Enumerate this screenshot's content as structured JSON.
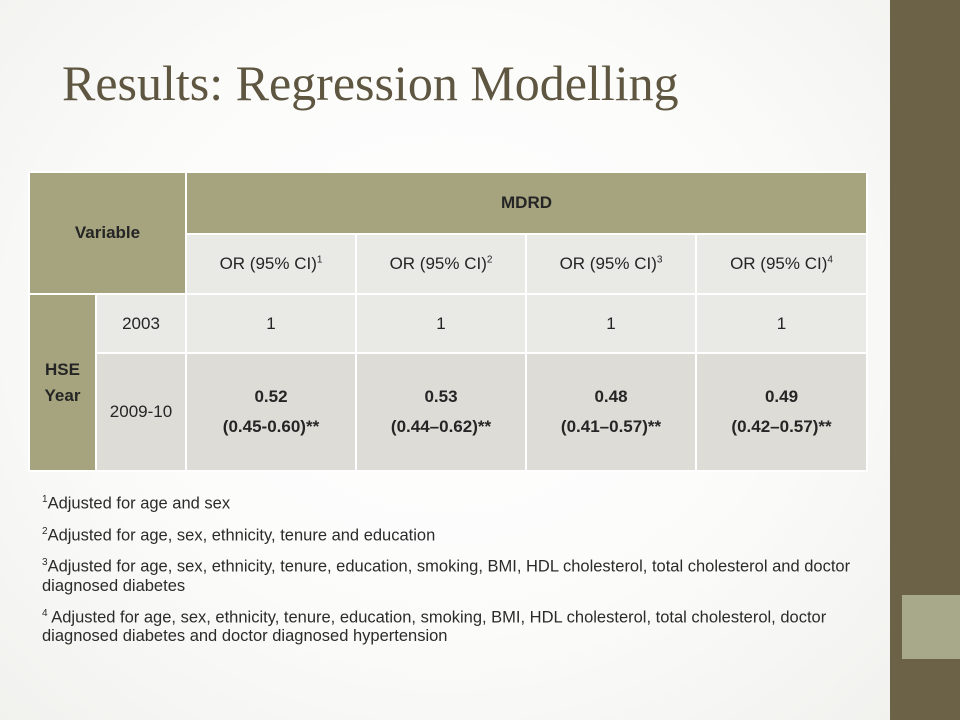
{
  "title": "Results: Regression Modelling",
  "table": {
    "variable_header": "Variable",
    "group_header": "MDRD",
    "columns": [
      {
        "label": "OR (95% CI)",
        "sup": "1"
      },
      {
        "label": "OR (95% CI)",
        "sup": "2"
      },
      {
        "label": "OR (95% CI)",
        "sup": "3"
      },
      {
        "label": "OR (95% CI)",
        "sup": "4"
      }
    ],
    "row_group_label": "HSE Year",
    "rows": [
      {
        "year": "2003",
        "values": [
          "1",
          "1",
          "1",
          "1"
        ]
      },
      {
        "year": "2009-10",
        "values": [
          {
            "or": "0.52",
            "ci": "(0.45-0.60)**"
          },
          {
            "or": "0.53",
            "ci": "(0.44–0.62)**"
          },
          {
            "or": "0.48",
            "ci": "(0.41–0.57)**"
          },
          {
            "or": "0.49",
            "ci": "(0.42–0.57)**"
          }
        ]
      }
    ]
  },
  "footnotes": [
    {
      "sup": "1",
      "text": "Adjusted for age and sex"
    },
    {
      "sup": "2",
      "text": "Adjusted for age, sex, ethnicity, tenure and education"
    },
    {
      "sup": "3",
      "text": "Adjusted for age, sex, ethnicity, tenure, education, smoking, BMI, HDL cholesterol, total cholesterol and doctor diagnosed diabetes"
    },
    {
      "sup": "4",
      "text": " Adjusted for age, sex, ethnicity, tenure, education, smoking, BMI, HDL cholesterol, total cholesterol, doctor diagnosed diabetes and doctor diagnosed hypertension"
    }
  ],
  "colors": {
    "header_fill": "#a6a47e",
    "row_light": "#e9e9e6",
    "row_dark": "#dedcd6",
    "title_text": "#5e5640",
    "sidebar": "#6c6248",
    "sidebar_accent": "#a8a98a"
  }
}
